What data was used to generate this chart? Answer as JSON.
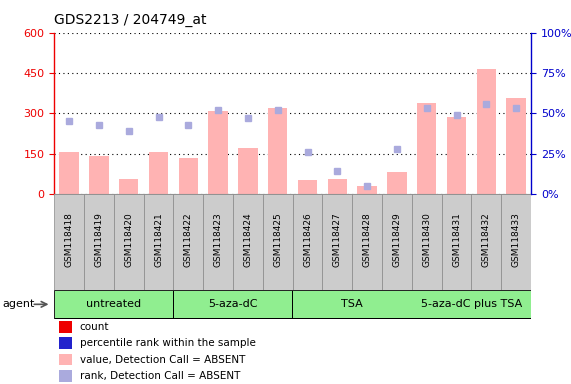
{
  "title": "GDS2213 / 204749_at",
  "samples": [
    "GSM118418",
    "GSM118419",
    "GSM118420",
    "GSM118421",
    "GSM118422",
    "GSM118423",
    "GSM118424",
    "GSM118425",
    "GSM118426",
    "GSM118427",
    "GSM118428",
    "GSM118429",
    "GSM118430",
    "GSM118431",
    "GSM118432",
    "GSM118433"
  ],
  "bar_values": [
    155,
    140,
    55,
    155,
    135,
    310,
    170,
    320,
    50,
    55,
    30,
    80,
    340,
    285,
    465,
    355
  ],
  "rank_values": [
    45,
    43,
    39,
    48,
    43,
    52,
    47,
    52,
    26,
    14,
    5,
    28,
    53,
    49,
    56,
    53
  ],
  "bar_color": "#FFB3B3",
  "rank_color": "#AAAADD",
  "left_ylim": [
    0,
    600
  ],
  "left_yticks": [
    0,
    150,
    300,
    450,
    600
  ],
  "right_ylim": [
    0,
    100
  ],
  "right_yticks": [
    0,
    25,
    50,
    75,
    100
  ],
  "groups": [
    {
      "label": "untreated",
      "start": 0,
      "end": 4
    },
    {
      "label": "5-aza-dC",
      "start": 4,
      "end": 8
    },
    {
      "label": "TSA",
      "start": 8,
      "end": 12
    },
    {
      "label": "5-aza-dC plus TSA",
      "start": 12,
      "end": 16
    }
  ],
  "group_color": "#90EE90",
  "group_border_color": "#000000",
  "agent_label": "agent",
  "legend_items": [
    {
      "label": "count",
      "color": "#EE0000"
    },
    {
      "label": "percentile rank within the sample",
      "color": "#2222CC"
    },
    {
      "label": "value, Detection Call = ABSENT",
      "color": "#FFB3B3"
    },
    {
      "label": "rank, Detection Call = ABSENT",
      "color": "#AAAADD"
    }
  ],
  "left_axis_color": "#EE0000",
  "right_axis_color": "#0000CC",
  "bg_color": "#FFFFFF",
  "plot_bg": "#FFFFFF",
  "grid_color": "#000000",
  "sample_box_color": "#CCCCCC",
  "sample_box_border": "#888888"
}
